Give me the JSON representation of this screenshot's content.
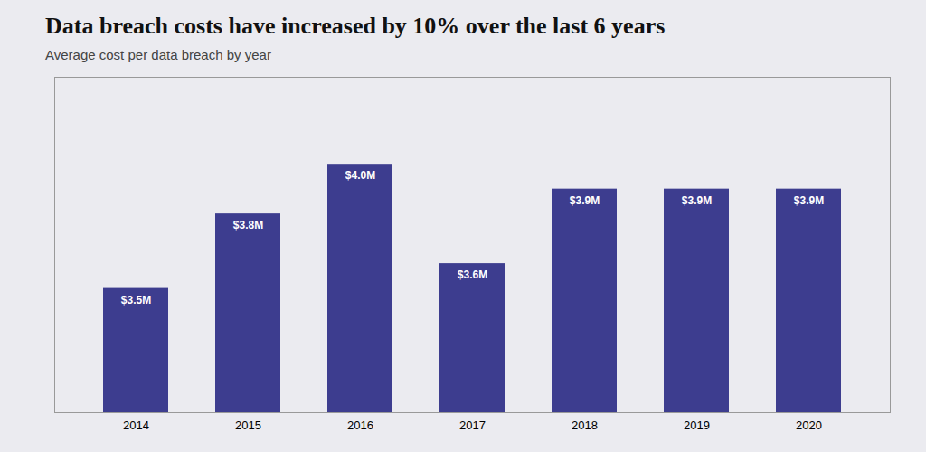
{
  "chart_data": {
    "type": "bar",
    "title": "Data breach costs have increased by 10% over the last 6 years",
    "subtitle": "Average cost per data breach by year",
    "categories": [
      "2014",
      "2015",
      "2016",
      "2017",
      "2018",
      "2019",
      "2020"
    ],
    "values": [
      3.5,
      3.8,
      4.0,
      3.6,
      3.9,
      3.9,
      3.9
    ],
    "value_labels": [
      "$3.5M",
      "$3.8M",
      "$4.0M",
      "$3.6M",
      "$3.9M",
      "$3.9M",
      "$3.9M"
    ],
    "color": "#3d3d8f",
    "ylim": [
      3.0,
      4.35
    ],
    "data_labels": true,
    "tick_labels": "x",
    "grid": false
  }
}
